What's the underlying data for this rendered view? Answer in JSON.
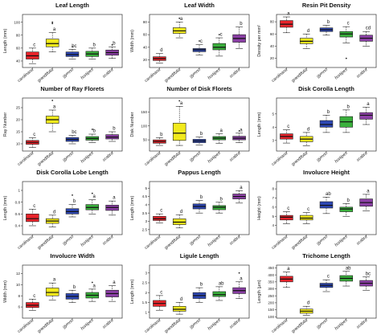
{
  "colors": {
    "carolinana": "#e8232a",
    "grandifolia": "#f2ea1c",
    "gymno": "#2d47b4",
    "hortipes": "#3ab03c",
    "scabra": "#8b3fa5"
  },
  "chart_data": [
    {
      "type": "box",
      "title": "Leaf Length",
      "ylabel": "Length (mm)",
      "yticks": [
        40,
        60,
        80,
        100
      ],
      "ylim": [
        30,
        112
      ],
      "categories": [
        "carolinana",
        "grandifolia",
        "gymno",
        "hortipes",
        "scabra"
      ],
      "boxes": [
        {
          "min": 36,
          "q1": 43,
          "median": 48,
          "q3": 54,
          "max": 60
        },
        {
          "min": 54,
          "q1": 62,
          "median": 67,
          "q3": 74,
          "max": 84
        },
        {
          "min": 43,
          "q1": 47,
          "median": 50,
          "q3": 54,
          "max": 58
        },
        {
          "min": 43,
          "q1": 47,
          "median": 51,
          "q3": 55,
          "max": 60
        },
        {
          "min": 44,
          "q1": 49,
          "median": 53,
          "q3": 57,
          "max": 62
        }
      ],
      "outliers": [
        [],
        [
          100,
          98
        ],
        [
          62
        ],
        [],
        [
          65
        ]
      ],
      "letters": [
        "c",
        "a",
        "bc",
        "b",
        "b"
      ]
    },
    {
      "type": "box",
      "title": "Leaf Width",
      "ylabel": "Width (mm)",
      "yticks": [
        20,
        40,
        60,
        80
      ],
      "ylim": [
        8,
        92
      ],
      "categories": [
        "carolinana",
        "grandifolia",
        "gymno",
        "hortipes",
        "scabra"
      ],
      "boxes": [
        {
          "min": 15,
          "q1": 19,
          "median": 22,
          "q3": 25,
          "max": 30
        },
        {
          "min": 55,
          "q1": 62,
          "median": 66,
          "q3": 71,
          "max": 80
        },
        {
          "min": 28,
          "q1": 33,
          "median": 36,
          "q3": 38,
          "max": 44
        },
        {
          "min": 26,
          "q1": 36,
          "median": 40,
          "q3": 46,
          "max": 55
        },
        {
          "min": 38,
          "q1": 48,
          "median": 54,
          "q3": 60,
          "max": 72
        }
      ],
      "outliers": [
        [],
        [
          86
        ],
        [
          50
        ],
        [
          60
        ],
        []
      ],
      "letters": [
        "d",
        "a",
        "c",
        "c",
        "b"
      ]
    },
    {
      "type": "box",
      "title": "Resin Pit Density",
      "ylabel": "Density per mm²",
      "yticks": [
        20,
        40,
        60,
        80
      ],
      "ylim": [
        5,
        92
      ],
      "categories": [
        "carolinana",
        "grandifolia",
        "gymno",
        "hortipes",
        "scabra"
      ],
      "boxes": [
        {
          "min": 62,
          "q1": 71,
          "median": 76,
          "q3": 82,
          "max": 88
        },
        {
          "min": 36,
          "q1": 44,
          "median": 48,
          "q3": 53,
          "max": 60
        },
        {
          "min": 58,
          "q1": 64,
          "median": 67,
          "q3": 70,
          "max": 74
        },
        {
          "min": 45,
          "q1": 55,
          "median": 60,
          "q3": 64,
          "max": 72
        },
        {
          "min": 40,
          "q1": 48,
          "median": 53,
          "q3": 58,
          "max": 64
        }
      ],
      "outliers": [
        [],
        [],
        [],
        [
          20
        ],
        []
      ],
      "letters": [
        "a",
        "d",
        "b",
        "c",
        "cd"
      ]
    },
    {
      "type": "box",
      "title": "Number of Ray Florets",
      "ylabel": "Ray Number",
      "yticks": [
        10,
        15,
        20,
        25
      ],
      "ylim": [
        7,
        29
      ],
      "categories": [
        "carolinana",
        "grandifolia",
        "gymno",
        "hortipes",
        "scabra"
      ],
      "boxes": [
        {
          "min": 8.5,
          "q1": 9.8,
          "median": 10.6,
          "q3": 11.4,
          "max": 12.5
        },
        {
          "min": 15,
          "q1": 18.5,
          "median": 20,
          "q3": 21.5,
          "max": 24
        },
        {
          "min": 10,
          "q1": 11,
          "median": 11.8,
          "q3": 12.6,
          "max": 13.5
        },
        {
          "min": 10.5,
          "q1": 11.5,
          "median": 12.2,
          "q3": 13,
          "max": 14
        },
        {
          "min": 11,
          "q1": 12,
          "median": 12.8,
          "q3": 13.8,
          "max": 15
        }
      ],
      "outliers": [
        [],
        [
          28
        ],
        [],
        [
          16
        ],
        []
      ],
      "letters": [
        "c",
        "a",
        "bc",
        "b",
        "b"
      ]
    },
    {
      "type": "box",
      "title": "Number of Disk Florets",
      "ylabel": "Disk Number",
      "yticks": [
        50,
        100,
        150
      ],
      "ylim": [
        10,
        200
      ],
      "categories": [
        "carolinana",
        "grandifolia",
        "gymno",
        "hortipes",
        "scabra"
      ],
      "boxes": [
        {
          "min": 30,
          "q1": 38,
          "median": 44,
          "q3": 50,
          "max": 58
        },
        {
          "min": 30,
          "q1": 48,
          "median": 74,
          "q3": 110,
          "max": 170
        },
        {
          "min": 32,
          "q1": 40,
          "median": 46,
          "q3": 52,
          "max": 60
        },
        {
          "min": 38,
          "q1": 50,
          "median": 56,
          "q3": 62,
          "max": 72
        },
        {
          "min": 40,
          "q1": 50,
          "median": 56,
          "q3": 63,
          "max": 74
        }
      ],
      "outliers": [
        [],
        [
          190
        ],
        [],
        [],
        [
          82
        ]
      ],
      "letters": [
        "b",
        "a",
        "b",
        "a",
        "a"
      ]
    },
    {
      "type": "box",
      "title": "Disk Corolla Length",
      "ylabel": "Length (mm)",
      "yticks": [
        3,
        4,
        5
      ],
      "ylim": [
        2.2,
        6.2
      ],
      "categories": [
        "carolinana",
        "grandifolia",
        "gymno",
        "hortipes",
        "scabra"
      ],
      "boxes": [
        {
          "min": 2.8,
          "q1": 3.1,
          "median": 3.3,
          "q3": 3.5,
          "max": 3.8
        },
        {
          "min": 2.6,
          "q1": 2.9,
          "median": 3.1,
          "q3": 3.3,
          "max": 3.6
        },
        {
          "min": 3.6,
          "q1": 4.0,
          "median": 4.2,
          "q3": 4.5,
          "max": 4.9
        },
        {
          "min": 3.6,
          "q1": 4.0,
          "median": 4.4,
          "q3": 4.8,
          "max": 5.3
        },
        {
          "min": 4.2,
          "q1": 4.6,
          "median": 4.9,
          "q3": 5.1,
          "max": 5.5
        }
      ],
      "outliers": [
        [],
        [],
        [],
        [],
        []
      ],
      "letters": [
        "c",
        "d",
        "b",
        "b",
        "a"
      ]
    },
    {
      "type": "box",
      "title": "Disk Corolla Lobe Length",
      "ylabel": "Length (mm)",
      "yticks": [
        0.4,
        0.6,
        0.8,
        1.0
      ],
      "ylim": [
        0.25,
        1.15
      ],
      "categories": [
        "carolinana",
        "grandifolia",
        "gymno",
        "hortipes",
        "scabra"
      ],
      "boxes": [
        {
          "min": 0.4,
          "q1": 0.47,
          "median": 0.52,
          "q3": 0.6,
          "max": 0.68
        },
        {
          "min": 0.38,
          "q1": 0.44,
          "median": 0.48,
          "q3": 0.52,
          "max": 0.58
        },
        {
          "min": 0.55,
          "q1": 0.6,
          "median": 0.64,
          "q3": 0.69,
          "max": 0.76
        },
        {
          "min": 0.6,
          "q1": 0.67,
          "median": 0.71,
          "q3": 0.76,
          "max": 0.84
        },
        {
          "min": 0.58,
          "q1": 0.66,
          "median": 0.71,
          "q3": 0.75,
          "max": 0.82
        }
      ],
      "outliers": [
        [],
        [],
        [
          0.92
        ],
        [
          0.95
        ],
        []
      ],
      "letters": [
        "c",
        "d",
        "b",
        "a",
        "a"
      ]
    },
    {
      "type": "box",
      "title": "Pappus Length",
      "ylabel": "Length (mm)",
      "yticks": [
        2.5,
        3.0,
        3.5,
        4.0,
        4.5,
        5.0
      ],
      "ylim": [
        2.2,
        5.4
      ],
      "categories": [
        "carolinana",
        "grandifolia",
        "gymno",
        "hortipes",
        "scabra"
      ],
      "boxes": [
        {
          "min": 2.9,
          "q1": 3.05,
          "median": 3.15,
          "q3": 3.3,
          "max": 3.45
        },
        {
          "min": 2.6,
          "q1": 2.8,
          "median": 2.95,
          "q3": 3.15,
          "max": 3.4
        },
        {
          "min": 3.5,
          "q1": 3.75,
          "median": 3.9,
          "q3": 4.05,
          "max": 4.25
        },
        {
          "min": 3.5,
          "q1": 3.7,
          "median": 3.85,
          "q3": 3.95,
          "max": 4.15
        },
        {
          "min": 4.1,
          "q1": 4.35,
          "median": 4.5,
          "q3": 4.65,
          "max": 4.85
        }
      ],
      "outliers": [
        [],
        [],
        [],
        [],
        []
      ],
      "letters": [
        "c",
        "d",
        "b",
        "b",
        "a"
      ]
    },
    {
      "type": "box",
      "title": "Involucre Height",
      "ylabel": "Height (mm)",
      "yticks": [
        4,
        5,
        6,
        7,
        8
      ],
      "ylim": [
        3,
        8.8
      ],
      "categories": [
        "carolinana",
        "grandifolia",
        "gymno",
        "hortipes",
        "scabra"
      ],
      "boxes": [
        {
          "min": 4.2,
          "q1": 4.6,
          "median": 4.9,
          "q3": 5.1,
          "max": 5.5
        },
        {
          "min": 4.2,
          "q1": 4.6,
          "median": 4.8,
          "q3": 5.1,
          "max": 5.4
        },
        {
          "min": 5.3,
          "q1": 5.9,
          "median": 6.2,
          "q3": 6.6,
          "max": 7.1
        },
        {
          "min": 5.0,
          "q1": 5.5,
          "median": 5.8,
          "q3": 6.0,
          "max": 6.4
        },
        {
          "min": 5.6,
          "q1": 6.1,
          "median": 6.5,
          "q3": 6.9,
          "max": 7.4
        }
      ],
      "outliers": [
        [],
        [],
        [],
        [],
        []
      ],
      "letters": [
        "c",
        "c",
        "ab",
        "b",
        "a"
      ]
    },
    {
      "type": "box",
      "title": "Involucre Width",
      "ylabel": "Width (mm)",
      "yticks": [
        6,
        8,
        10,
        12
      ],
      "ylim": [
        4,
        13.5
      ],
      "categories": [
        "carolinana",
        "grandifolia",
        "gymno",
        "hortipes",
        "scabra"
      ],
      "boxes": [
        {
          "min": 5.4,
          "q1": 5.9,
          "median": 6.3,
          "q3": 6.8,
          "max": 7.4
        },
        {
          "min": 7.2,
          "q1": 8.0,
          "median": 8.6,
          "q3": 9.4,
          "max": 10.3
        },
        {
          "min": 6.8,
          "q1": 7.4,
          "median": 7.9,
          "q3": 8.4,
          "max": 9.0
        },
        {
          "min": 7.0,
          "q1": 7.6,
          "median": 8.1,
          "q3": 8.6,
          "max": 9.2
        },
        {
          "min": 7.0,
          "q1": 7.8,
          "median": 8.4,
          "q3": 9.0,
          "max": 9.8
        }
      ],
      "outliers": [
        [],
        [],
        [],
        [
          10.4
        ],
        []
      ],
      "letters": [
        "c",
        "a",
        "b",
        "a",
        "a"
      ]
    },
    {
      "type": "box",
      "title": "Ligule Length",
      "ylabel": "Length (mm)",
      "yticks": [
        1.0,
        1.5,
        2.0,
        2.5,
        3.0
      ],
      "ylim": [
        0.7,
        3.4
      ],
      "categories": [
        "carolinana",
        "grandifolia",
        "gymno",
        "hortipes",
        "scabra"
      ],
      "boxes": [
        {
          "min": 1.1,
          "q1": 1.3,
          "median": 1.45,
          "q3": 1.6,
          "max": 1.85
        },
        {
          "min": 0.9,
          "q1": 1.05,
          "median": 1.15,
          "q3": 1.3,
          "max": 1.5
        },
        {
          "min": 1.5,
          "q1": 1.7,
          "median": 1.85,
          "q3": 2.0,
          "max": 2.25
        },
        {
          "min": 1.6,
          "q1": 1.8,
          "median": 1.9,
          "q3": 2.05,
          "max": 2.3
        },
        {
          "min": 1.7,
          "q1": 1.95,
          "median": 2.1,
          "q3": 2.25,
          "max": 2.55
        }
      ],
      "outliers": [
        [],
        [],
        [],
        [],
        [
          3.0
        ]
      ],
      "letters": [
        "c",
        "d",
        "b",
        "ab",
        "a"
      ]
    },
    {
      "type": "box",
      "title": "Trichome Length",
      "ylabel": "Length (µm)",
      "yticks": [
        100,
        150,
        200,
        250,
        300,
        350,
        400,
        450
      ],
      "ylim": [
        90,
        470
      ],
      "categories": [
        "carolinana",
        "grandifolia",
        "gymno",
        "hortipes",
        "scabra"
      ],
      "boxes": [
        {
          "min": 310,
          "q1": 350,
          "median": 370,
          "q3": 390,
          "max": 420
        },
        {
          "min": 110,
          "q1": 125,
          "median": 140,
          "q3": 155,
          "max": 175
        },
        {
          "min": 280,
          "q1": 310,
          "median": 325,
          "q3": 340,
          "max": 365
        },
        {
          "min": 320,
          "q1": 355,
          "median": 375,
          "q3": 395,
          "max": 425
        },
        {
          "min": 290,
          "q1": 320,
          "median": 340,
          "q3": 360,
          "max": 385
        }
      ],
      "outliers": [
        [],
        [],
        [],
        [],
        []
      ],
      "letters": [
        "a",
        "d",
        "c",
        "ab",
        "bc"
      ]
    }
  ]
}
